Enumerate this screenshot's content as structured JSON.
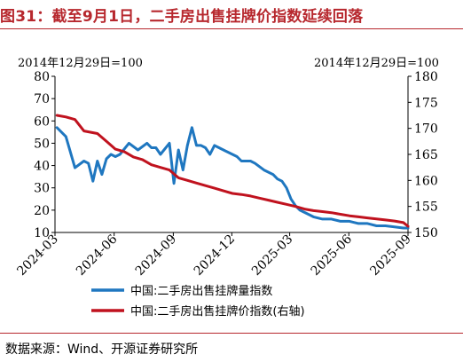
{
  "title": "图31：截至9月1日，二手房出售挂牌价指数延续回落",
  "source": "数据来源：Wind、开源证券研究所",
  "chart_data": {
    "type": "line",
    "left_axis_note": "2014年12月29日=100",
    "right_axis_note": "2014年12月29日=100",
    "y_left_ticks": [
      "80",
      "70",
      "60",
      "50",
      "40",
      "30",
      "20",
      "10"
    ],
    "y_right_ticks": [
      "180",
      "175",
      "170",
      "165",
      "160",
      "155",
      "150"
    ],
    "x_ticks": [
      "2024-03",
      "2024-06",
      "2024-09",
      "2024-12",
      "2025-03",
      "2025-06",
      "2025-09"
    ],
    "ylim_left": [
      10,
      80
    ],
    "ylim_right": [
      150,
      180
    ],
    "grid": false,
    "legend_position": "bottom",
    "series": [
      {
        "name": "中国:二手房出售挂牌量指数",
        "axis": "left",
        "color": "#1f77c0",
        "x": [
          "2024-03-04",
          "2024-03-18",
          "2024-04-01",
          "2024-04-15",
          "2024-04-22",
          "2024-04-29",
          "2024-05-06",
          "2024-05-13",
          "2024-05-20",
          "2024-05-27",
          "2024-06-03",
          "2024-06-10",
          "2024-06-24",
          "2024-07-08",
          "2024-07-22",
          "2024-07-29",
          "2024-08-05",
          "2024-08-12",
          "2024-08-26",
          "2024-09-02",
          "2024-09-09",
          "2024-09-16",
          "2024-09-23",
          "2024-09-30",
          "2024-10-07",
          "2024-10-14",
          "2024-10-21",
          "2024-10-28",
          "2024-11-04",
          "2024-11-11",
          "2024-11-18",
          "2024-11-25",
          "2024-12-02",
          "2024-12-09",
          "2024-12-16",
          "2024-12-30",
          "2025-01-06",
          "2025-01-20",
          "2025-02-03",
          "2025-02-10",
          "2025-02-17",
          "2025-02-24",
          "2025-03-03",
          "2025-03-10",
          "2025-03-17",
          "2025-03-24",
          "2025-03-31",
          "2025-04-07",
          "2025-04-21",
          "2025-05-05",
          "2025-05-19",
          "2025-06-02",
          "2025-06-16",
          "2025-06-30",
          "2025-07-14",
          "2025-07-28",
          "2025-08-11",
          "2025-08-25",
          "2025-09-01"
        ],
        "values": [
          57,
          53,
          39,
          42,
          41,
          33,
          42,
          36,
          43,
          45,
          44,
          45,
          50,
          47,
          50,
          48,
          48,
          45,
          50,
          32,
          47,
          38,
          49,
          57,
          49,
          49,
          48,
          45,
          49,
          48,
          47,
          46,
          45,
          44,
          42,
          42,
          41,
          38,
          36,
          34,
          33,
          30,
          25,
          22,
          20,
          19,
          18,
          17,
          16,
          16,
          15,
          15,
          14,
          14,
          13,
          13,
          12.5,
          12,
          12
        ]
      },
      {
        "name": "中国:二手房出售挂牌价指数(右轴)",
        "axis": "right",
        "color": "#c0121e",
        "x": [
          "2024-03-04",
          "2024-03-18",
          "2024-04-01",
          "2024-04-15",
          "2024-05-06",
          "2024-05-20",
          "2024-06-03",
          "2024-06-17",
          "2024-07-01",
          "2024-07-15",
          "2024-07-29",
          "2024-08-12",
          "2024-08-26",
          "2024-09-09",
          "2024-09-23",
          "2024-10-07",
          "2024-10-21",
          "2024-11-04",
          "2024-11-18",
          "2024-12-02",
          "2024-12-16",
          "2024-12-30",
          "2025-01-13",
          "2025-01-27",
          "2025-02-10",
          "2025-02-24",
          "2025-03-10",
          "2025-03-24",
          "2025-04-07",
          "2025-04-21",
          "2025-05-05",
          "2025-05-19",
          "2025-06-02",
          "2025-06-16",
          "2025-06-30",
          "2025-07-14",
          "2025-07-28",
          "2025-08-11",
          "2025-08-25",
          "2025-09-01"
        ],
        "values": [
          172.5,
          172.2,
          171.7,
          169.5,
          169.0,
          167.5,
          166.0,
          165.5,
          164.5,
          164.0,
          163.0,
          162.5,
          162.0,
          160.5,
          160.0,
          159.5,
          159.0,
          158.5,
          158.0,
          157.5,
          157.3,
          157.0,
          156.6,
          156.2,
          155.8,
          155.4,
          155.0,
          154.5,
          154.2,
          154.0,
          153.8,
          153.5,
          153.2,
          153.0,
          152.8,
          152.6,
          152.4,
          152.2,
          151.9,
          151.2
        ]
      }
    ]
  }
}
